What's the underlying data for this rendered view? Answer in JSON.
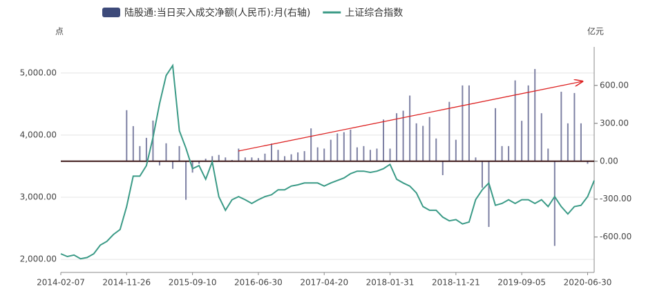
{
  "chart_data": {
    "type": "combo",
    "y_axis_label": "点",
    "y2_axis_label": "亿元",
    "categories": [
      "2014-02-07",
      null,
      null,
      null,
      null,
      null,
      null,
      null,
      null,
      null,
      "2014-11-26",
      null,
      null,
      null,
      null,
      null,
      null,
      null,
      null,
      null,
      "2015-09-10",
      null,
      null,
      null,
      null,
      null,
      null,
      null,
      null,
      null,
      "2016-06-30",
      null,
      null,
      null,
      null,
      null,
      null,
      null,
      null,
      null,
      "2017-04-20",
      null,
      null,
      null,
      null,
      null,
      null,
      null,
      null,
      null,
      "2018-01-31",
      null,
      null,
      null,
      null,
      null,
      null,
      null,
      null,
      null,
      "2018-11-21",
      null,
      null,
      null,
      null,
      null,
      null,
      null,
      null,
      null,
      "2019-09-05",
      null,
      null,
      null,
      null,
      null,
      null,
      null,
      null,
      null,
      "2020-06-30",
      null
    ],
    "series": [
      {
        "name": "陆股通:当日买入成交净额(人民币):月(右轴)",
        "type": "bar",
        "axis": "y2",
        "color": "#7d80a3",
        "legend_color": "#3d4a7a",
        "values": [
          null,
          null,
          null,
          null,
          null,
          null,
          null,
          null,
          null,
          null,
          404,
          278,
          120,
          185,
          322,
          -33,
          142,
          -60,
          120,
          -305,
          -90,
          -20,
          20,
          40,
          50,
          30,
          10,
          100,
          30,
          30,
          25,
          60,
          140,
          90,
          40,
          55,
          70,
          80,
          260,
          110,
          100,
          170,
          220,
          230,
          250,
          110,
          120,
          90,
          100,
          330,
          100,
          380,
          400,
          520,
          300,
          280,
          350,
          180,
          -110,
          470,
          170,
          600,
          600,
          30,
          -210,
          -520,
          420,
          120,
          120,
          640,
          320,
          600,
          730,
          380,
          100,
          -670,
          550,
          300,
          540,
          300,
          -20,
          null
        ]
      },
      {
        "name": "上证综合指数",
        "type": "line",
        "color": "#3a9a86",
        "values": [
          2090,
          2045,
          2070,
          2010,
          2030,
          2090,
          2230,
          2290,
          2400,
          2480,
          2850,
          3340,
          3340,
          3510,
          3960,
          4510,
          4960,
          5120,
          4070,
          3790,
          3460,
          3510,
          3290,
          3570,
          3010,
          2790,
          2960,
          3010,
          2960,
          2900,
          2960,
          3010,
          3040,
          3120,
          3120,
          3180,
          3200,
          3230,
          3230,
          3230,
          3180,
          3230,
          3270,
          3310,
          3380,
          3420,
          3420,
          3400,
          3420,
          3460,
          3530,
          3290,
          3230,
          3180,
          3070,
          2850,
          2790,
          2790,
          2680,
          2620,
          2640,
          2570,
          2600,
          2960,
          3120,
          3230,
          2870,
          2900,
          2960,
          2900,
          2960,
          2960,
          2900,
          2960,
          2850,
          3010,
          2850,
          2730,
          2850,
          2870,
          3010,
          3270
        ]
      }
    ],
    "ylim": [
      1790,
      5420
    ],
    "yticks": [
      {
        "value": 2000,
        "label": "2,000.00"
      },
      {
        "value": 3000,
        "label": "3,000.00"
      },
      {
        "value": 4000,
        "label": "4,000.00"
      },
      {
        "value": 5000,
        "label": "5,000.00"
      }
    ],
    "y2lim": [
      -880,
      905
    ],
    "y2ticks": [
      {
        "value": -600,
        "label": "-600.00"
      },
      {
        "value": -300,
        "label": "-300.00"
      },
      {
        "value": 0,
        "label": "0.00"
      },
      {
        "value": 300,
        "label": "300.00"
      },
      {
        "value": 600,
        "label": "600.00"
      }
    ],
    "grid": true
  }
}
